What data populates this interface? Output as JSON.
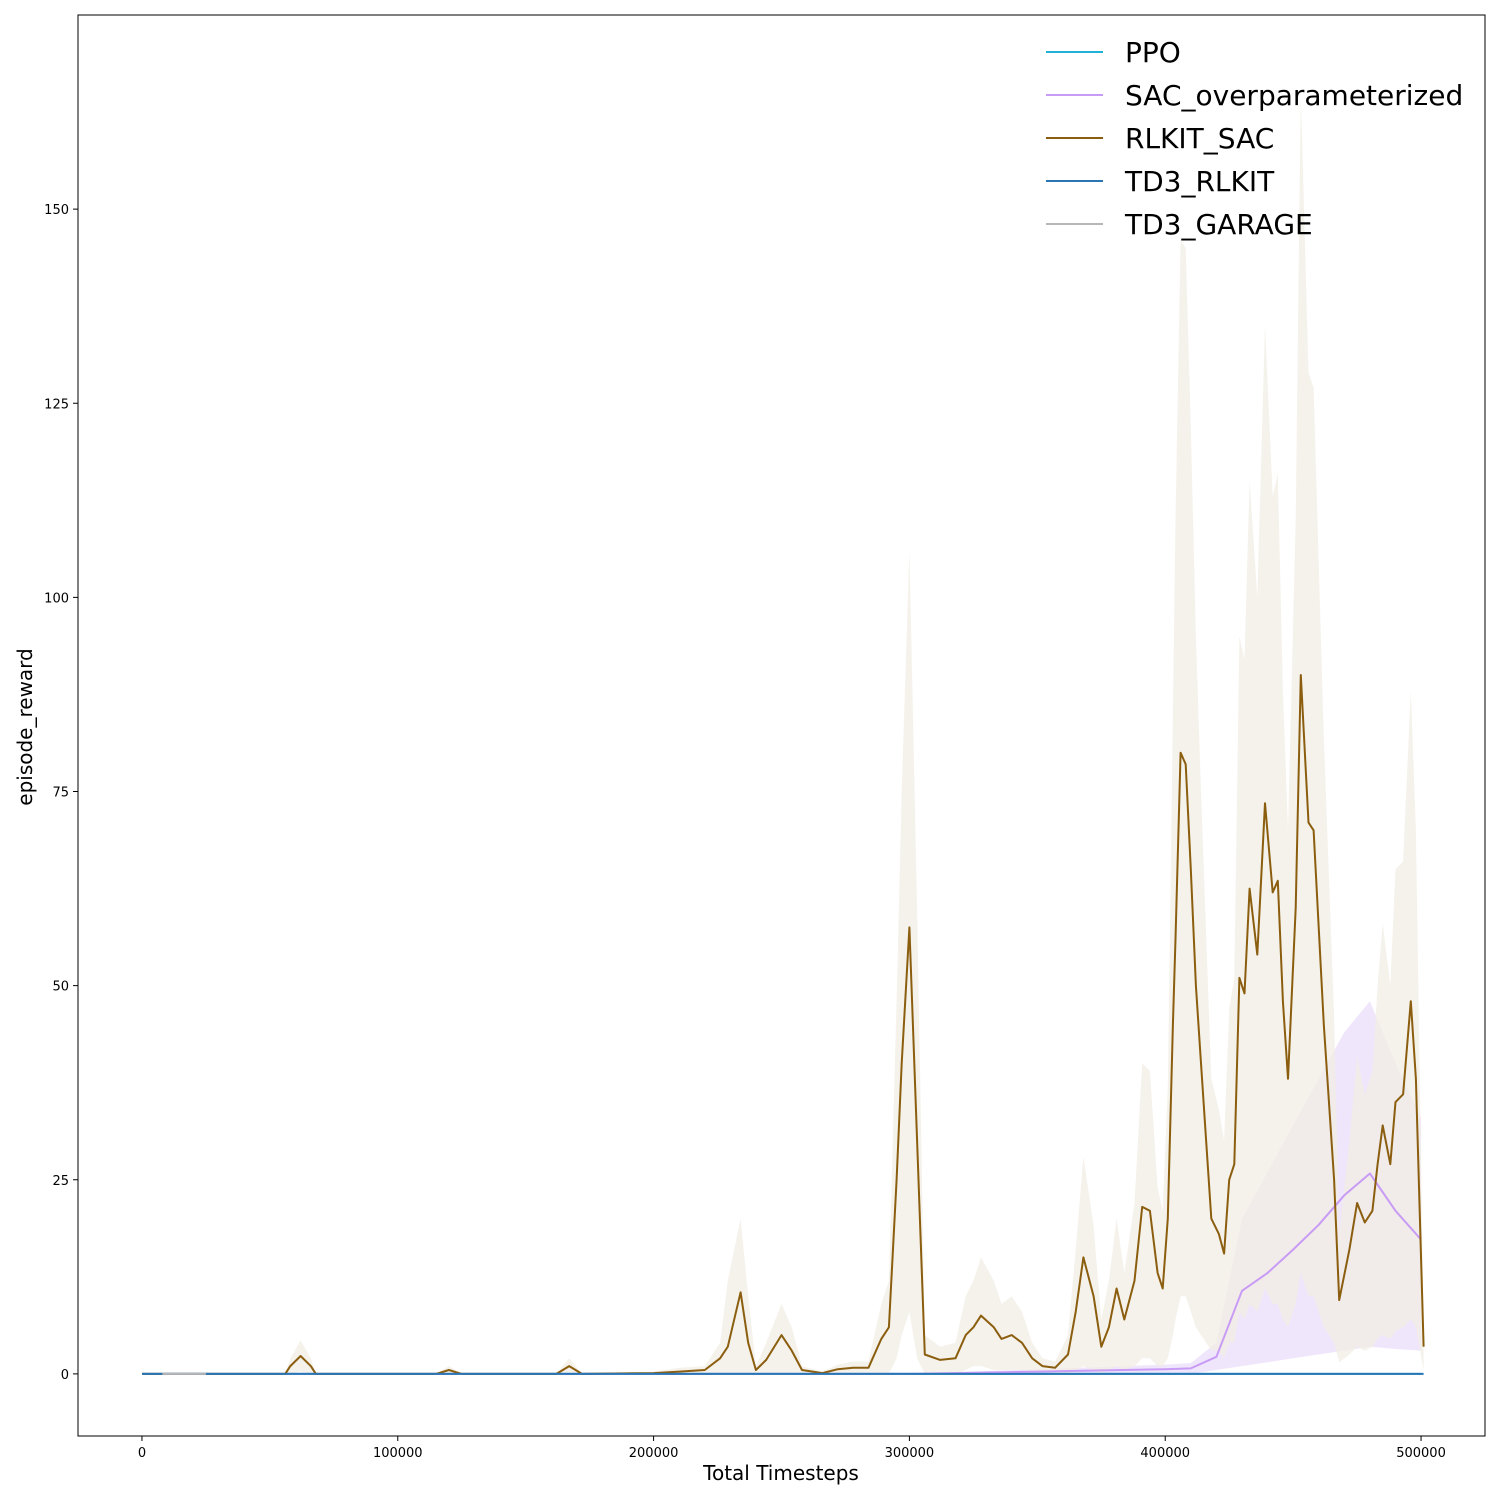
{
  "chart_data": {
    "type": "line",
    "xlabel": "Total Timesteps",
    "ylabel": "episode_reward",
    "xlim": [
      -25000,
      525000
    ],
    "ylim": [
      -8,
      175
    ],
    "xticks": [
      0,
      100000,
      200000,
      300000,
      400000,
      500000
    ],
    "xtick_labels": [
      "0",
      "100000",
      "200000",
      "300000",
      "400000",
      "500000"
    ],
    "yticks": [
      0,
      25,
      50,
      75,
      100,
      125,
      150
    ],
    "ytick_labels": [
      "0",
      "25",
      "50",
      "75",
      "100",
      "125",
      "150"
    ],
    "grid": false,
    "legend_position": "top-right",
    "series": [
      {
        "name": "PPO",
        "color": "#1fb1d8",
        "x": [
          0,
          100000,
          200000,
          300000,
          400000,
          500000
        ],
        "y": [
          0,
          0,
          0,
          0,
          0,
          0
        ]
      },
      {
        "name": "SAC_overparameterized",
        "color": "#c89bf5",
        "band_color": "#eadcfb",
        "x": [
          0,
          100000,
          200000,
          300000,
          350000,
          400000,
          410000,
          420000,
          430000,
          440000,
          450000,
          460000,
          470000,
          480000,
          490000,
          500000
        ],
        "y": [
          0,
          0,
          0,
          0,
          0.3,
          0.6,
          0.7,
          2.2,
          10.7,
          13.0,
          16.0,
          19.2,
          23.0,
          25.8,
          21.0,
          17.3
        ],
        "lower": [
          0,
          0,
          0,
          0,
          0,
          0,
          0,
          0.5,
          1.0,
          1.5,
          2.0,
          2.5,
          3.0,
          3.5,
          3.2,
          3.0
        ],
        "upper": [
          0,
          0,
          0,
          0,
          0.6,
          1.2,
          1.4,
          4.0,
          20.0,
          26.0,
          32.0,
          38.0,
          44.0,
          48.0,
          40.0,
          33.0
        ]
      },
      {
        "name": "RLKIT_SAC",
        "color": "#8b5e0f",
        "band_color": "#f1ede3",
        "x": [
          0,
          56000,
          58000,
          62000,
          66000,
          68000,
          115000,
          120000,
          125000,
          162000,
          167000,
          172000,
          200000,
          210000,
          220000,
          226000,
          229000,
          234000,
          237000,
          240000,
          244000,
          250000,
          254000,
          258000,
          266000,
          272000,
          278000,
          284000,
          289000,
          292000,
          295000,
          297000,
          300000,
          303000,
          306000,
          312000,
          318000,
          322000,
          325000,
          328000,
          333000,
          336000,
          340000,
          344000,
          348000,
          352000,
          357000,
          362000,
          365000,
          368000,
          372000,
          375000,
          378000,
          381000,
          384000,
          388000,
          391000,
          394000,
          397000,
          399000,
          401000,
          403000,
          404000,
          406000,
          408000,
          410000,
          412000,
          414000,
          418000,
          421000,
          423000,
          425000,
          427000,
          429000,
          431000,
          433000,
          436000,
          439000,
          442000,
          444000,
          446000,
          448000,
          451000,
          453000,
          456000,
          458000,
          462000,
          466000,
          468000,
          472000,
          475000,
          478000,
          481000,
          483000,
          485000,
          488000,
          490000,
          493000,
          496000,
          498000,
          501000
        ],
        "y": [
          0,
          0,
          1,
          2.3,
          1.0,
          0,
          0,
          0.5,
          0,
          0,
          1.0,
          0,
          0.1,
          0.3,
          0.5,
          2.0,
          3.5,
          10.5,
          4.0,
          0.5,
          1.8,
          5.0,
          3.0,
          0.5,
          0.1,
          0.6,
          0.8,
          0.8,
          4.5,
          6.0,
          25.0,
          40.0,
          57.5,
          30.0,
          2.5,
          1.8,
          2.0,
          5.0,
          6.0,
          7.5,
          6.0,
          4.5,
          5.0,
          4.0,
          2.0,
          1.0,
          0.8,
          2.5,
          8.0,
          15.0,
          10.0,
          3.5,
          6.0,
          11.0,
          7.0,
          12.0,
          21.5,
          21.0,
          13.0,
          11.0,
          20.0,
          45.0,
          56.0,
          80.0,
          78.5,
          65.0,
          50.0,
          40.0,
          20.0,
          18.0,
          15.5,
          25.0,
          27.0,
          51.0,
          49.0,
          62.5,
          54.0,
          73.5,
          62.0,
          63.5,
          48.0,
          38.0,
          60.0,
          90.0,
          71.0,
          70.0,
          45.0,
          25.0,
          9.5,
          16.0,
          22.0,
          19.5,
          21.0,
          27.0,
          32.0,
          27.0,
          35.0,
          36.0,
          48.0,
          38.0,
          3.5
        ],
        "lower": [
          0,
          0,
          0,
          0.3,
          0,
          0,
          0,
          0,
          0,
          0,
          0,
          0,
          0,
          0,
          0,
          0,
          0,
          0,
          0,
          0,
          0,
          0,
          0,
          0,
          0,
          0,
          0,
          0,
          0,
          0,
          2.0,
          5.0,
          8.0,
          2.0,
          0,
          0,
          0,
          0.5,
          1.0,
          1.0,
          0.5,
          0.5,
          0.5,
          0.5,
          0,
          0,
          0,
          0,
          0.5,
          1.0,
          0.5,
          0,
          0.5,
          1.0,
          0.5,
          1.0,
          2.0,
          2.0,
          1.0,
          1.0,
          2.0,
          5.0,
          7.0,
          10.0,
          10.0,
          8.0,
          6.0,
          5.0,
          3.0,
          3.0,
          2.0,
          4.0,
          4.0,
          8.0,
          7.0,
          9.0,
          8.0,
          11.0,
          9.0,
          9.0,
          7.0,
          6.0,
          9.0,
          13.0,
          10.0,
          10.0,
          6.0,
          4.0,
          1.5,
          2.5,
          3.5,
          3.0,
          3.5,
          4.5,
          5.0,
          4.5,
          5.5,
          6.0,
          7.0,
          6.0,
          0.5
        ],
        "upper": [
          0,
          0,
          2.0,
          4.3,
          2.0,
          0,
          0,
          1.0,
          0,
          0,
          2.0,
          0,
          0.3,
          0.8,
          1.0,
          4.0,
          12.0,
          20.0,
          10.0,
          1.0,
          4.0,
          9.0,
          6.0,
          1.0,
          0.3,
          1.2,
          1.6,
          1.6,
          9.0,
          12.0,
          48.0,
          75.0,
          106.0,
          60.0,
          5.0,
          3.5,
          4.0,
          10.0,
          12.0,
          15.0,
          12.0,
          9.0,
          10.0,
          8.0,
          4.0,
          2.0,
          1.6,
          5.0,
          16.0,
          28.0,
          19.0,
          7.0,
          12.0,
          20.0,
          13.0,
          22.0,
          40.0,
          39.0,
          24.0,
          21.0,
          37.0,
          85.0,
          110.0,
          146.0,
          145.0,
          122.0,
          95.0,
          75.0,
          38.0,
          34.0,
          30.0,
          47.0,
          51.0,
          95.0,
          92.0,
          115.0,
          100.0,
          135.0,
          113.0,
          116.0,
          88.0,
          70.0,
          110.0,
          165.0,
          129.0,
          127.0,
          82.0,
          46.0,
          18.0,
          30.0,
          41.0,
          36.0,
          39.0,
          50.0,
          58.0,
          50.0,
          65.0,
          66.0,
          88.0,
          70.0,
          6.5
        ]
      },
      {
        "name": "TD3_RLKIT",
        "color": "#2a76b4",
        "x": [
          0,
          100000,
          200000,
          300000,
          400000,
          501000
        ],
        "y": [
          0,
          0,
          0,
          0,
          0,
          0
        ]
      },
      {
        "name": "TD3_GARAGE",
        "color": "#b7b7b7",
        "x": [
          8000,
          25000
        ],
        "y": [
          0,
          0
        ]
      }
    ]
  }
}
